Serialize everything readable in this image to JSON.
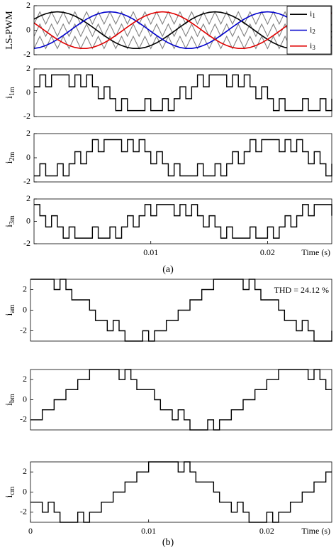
{
  "figure_labels": [
    "(a)",
    "(b)"
  ],
  "chart_data": [
    {
      "type": "line",
      "ylabel": "LS-PWM",
      "legend": "upper right",
      "x": [
        0,
        0.0005,
        0.001,
        0.0015,
        0.002,
        0.0025,
        0.003,
        0.0035,
        0.004,
        0.0045,
        0.005,
        0.0055,
        0.006,
        0.0065,
        0.007,
        0.0075,
        0.008,
        0.0085,
        0.009,
        0.0095,
        0.01,
        0.0105,
        0.011,
        0.0115,
        0.012,
        0.0125,
        0.013,
        0.0135,
        0.014,
        0.0145,
        0.015,
        0.0155,
        0.016,
        0.0165,
        0.017,
        0.0175,
        0.018,
        0.0185,
        0.019,
        0.0195,
        0.02,
        0.0205,
        0.021,
        0.0215,
        0.022,
        0.0225,
        0.023,
        0.0235,
        0.024,
        0.0245,
        0.025,
        0.0255
      ],
      "xlim": [
        0,
        0.0255
      ],
      "ylim": [
        -2,
        2
      ],
      "yticks": [
        -2,
        0,
        2
      ],
      "series": [
        {
          "color": "#808080",
          "values": [
            0.5,
            1.5,
            0.5,
            1.5,
            0.5,
            1.5,
            0.5,
            1.5,
            0.5,
            1.5,
            0.5,
            1.5,
            0.5,
            1.5,
            0.5,
            1.5,
            0.5,
            1.5,
            0.5,
            1.5,
            0.5,
            1.5,
            0.5,
            1.5,
            0.5,
            1.5,
            0.5,
            1.5,
            0.5,
            1.5,
            0.5,
            1.5,
            0.5,
            1.5,
            0.5,
            1.5,
            0.5,
            1.5,
            0.5,
            1.5,
            0.5,
            1.5,
            0.5,
            1.5,
            0.5,
            1.5,
            0.5,
            1.5,
            0.5,
            1.5,
            0.5,
            1.5
          ]
        },
        {
          "color": "#808080",
          "values": [
            -0.5,
            0.5,
            -0.5,
            0.5,
            -0.5,
            0.5,
            -0.5,
            0.5,
            -0.5,
            0.5,
            -0.5,
            0.5,
            -0.5,
            0.5,
            -0.5,
            0.5,
            -0.5,
            0.5,
            -0.5,
            0.5,
            -0.5,
            0.5,
            -0.5,
            0.5,
            -0.5,
            0.5,
            -0.5,
            0.5,
            -0.5,
            0.5,
            -0.5,
            0.5,
            -0.5,
            0.5,
            -0.5,
            0.5,
            -0.5,
            0.5,
            -0.5,
            0.5,
            -0.5,
            0.5,
            -0.5,
            0.5,
            -0.5,
            0.5,
            -0.5,
            0.5,
            -0.5,
            0.5,
            -0.5,
            0.5
          ]
        },
        {
          "color": "#808080",
          "values": [
            -1.5,
            -0.5,
            -1.5,
            -0.5,
            -1.5,
            -0.5,
            -1.5,
            -0.5,
            -1.5,
            -0.5,
            -1.5,
            -0.5,
            -1.5,
            -0.5,
            -1.5,
            -0.5,
            -1.5,
            -0.5,
            -1.5,
            -0.5,
            -1.5,
            -0.5,
            -1.5,
            -0.5,
            -1.5,
            -0.5,
            -1.5,
            -0.5,
            -1.5,
            -0.5,
            -1.5,
            -0.5,
            -1.5,
            -0.5,
            -1.5,
            -0.5,
            -1.5,
            -0.5,
            -1.5,
            -0.5,
            -1.5,
            -0.5,
            -1.5,
            -0.5,
            -1.5,
            -0.5,
            -1.5,
            -0.5,
            -1.5,
            -0.5,
            -1.5,
            -0.5
          ]
        },
        {
          "name": "i",
          "name_sub": "1",
          "color": "#000000",
          "values": [
            0.9,
            1.15,
            1.34,
            1.46,
            1.5,
            1.46,
            1.34,
            1.15,
            0.9,
            0.59,
            0.26,
            -0.09,
            -0.43,
            -0.75,
            -1.03,
            -1.25,
            -1.41,
            -1.49,
            -1.49,
            -1.41,
            -1.25,
            -1.03,
            -0.75,
            -0.43,
            -0.09,
            0.26,
            0.59,
            0.9,
            1.15,
            1.34,
            1.46,
            1.5,
            1.46,
            1.34,
            1.15,
            0.9,
            0.59,
            0.26,
            -0.09,
            -0.43,
            -0.75,
            -1.03,
            -1.25,
            -1.41,
            -1.49,
            -1.49,
            -1.41,
            -1.25,
            -1.03,
            -0.75,
            -0.43,
            -0.09
          ]
        },
        {
          "name": "i",
          "name_sub": "2",
          "color": "#0000cc",
          "values": [
            -1.49,
            -1.41,
            -1.25,
            -1.03,
            -0.75,
            -0.43,
            -0.09,
            0.26,
            0.59,
            0.9,
            1.15,
            1.34,
            1.46,
            1.5,
            1.46,
            1.34,
            1.15,
            0.9,
            0.59,
            0.26,
            -0.09,
            -0.43,
            -0.75,
            -1.03,
            -1.25,
            -1.41,
            -1.49,
            -1.49,
            -1.41,
            -1.25,
            -1.03,
            -0.75,
            -0.43,
            -0.09,
            0.26,
            0.59,
            0.9,
            1.15,
            1.34,
            1.46,
            1.5,
            1.46,
            1.34,
            1.15,
            0.9,
            0.59,
            0.26,
            -0.09,
            -0.43,
            -0.75,
            -1.03,
            -1.25
          ]
        },
        {
          "name": "i",
          "name_sub": "3",
          "color": "#e00000",
          "values": [
            0.59,
            0.26,
            -0.09,
            -0.43,
            -0.75,
            -1.03,
            -1.25,
            -1.41,
            -1.49,
            -1.49,
            -1.41,
            -1.25,
            -1.03,
            -0.75,
            -0.43,
            -0.09,
            0.26,
            0.59,
            0.9,
            1.15,
            1.34,
            1.46,
            1.5,
            1.46,
            1.34,
            1.15,
            0.9,
            0.59,
            0.26,
            -0.09,
            -0.43,
            -0.75,
            -1.03,
            -1.25,
            -1.41,
            -1.49,
            -1.49,
            -1.41,
            -1.25,
            -1.03,
            -0.75,
            -0.43,
            -0.09,
            0.26,
            0.59,
            0.9,
            1.15,
            1.34,
            1.46,
            1.5,
            1.46,
            1.34
          ]
        }
      ]
    },
    {
      "type": "line",
      "step": true,
      "ylabel": "i",
      "ylabel_sub": "1m",
      "x": [
        0,
        0.0005,
        0.001,
        0.0015,
        0.002,
        0.0025,
        0.003,
        0.0035,
        0.004,
        0.0045,
        0.005,
        0.0055,
        0.006,
        0.0065,
        0.007,
        0.0075,
        0.008,
        0.0085,
        0.009,
        0.0095,
        0.01,
        0.0105,
        0.011,
        0.0115,
        0.012,
        0.0125,
        0.013,
        0.0135,
        0.014,
        0.0145,
        0.015,
        0.0155,
        0.016,
        0.0165,
        0.017,
        0.0175,
        0.018,
        0.0185,
        0.019,
        0.0195,
        0.02,
        0.0205,
        0.021,
        0.0215,
        0.022,
        0.0225,
        0.023,
        0.0235,
        0.024,
        0.0245,
        0.025,
        0.0255
      ],
      "xlim": [
        0,
        0.0255
      ],
      "ylim": [
        -2,
        2
      ],
      "yticks": [
        -2,
        0,
        2
      ],
      "series": [
        {
          "color": "#000000",
          "values": [
            0.5,
            1.5,
            0.5,
            1.5,
            1.5,
            1.5,
            0.5,
            1.5,
            0.5,
            1.5,
            0.5,
            -0.5,
            0.5,
            -0.5,
            -1.5,
            -0.5,
            -1.5,
            -1.5,
            -1.5,
            -0.5,
            -1.5,
            -1.5,
            -0.5,
            -1.5,
            -0.5,
            0.5,
            -0.5,
            0.5,
            1.5,
            0.5,
            1.5,
            1.5,
            1.5,
            0.5,
            1.5,
            0.5,
            1.5,
            0.5,
            -0.5,
            0.5,
            -0.5,
            -1.5,
            -0.5,
            -1.5,
            -1.5,
            -1.5,
            -0.5,
            -1.5,
            -1.5,
            -0.5,
            -1.5,
            -0.5
          ]
        }
      ]
    },
    {
      "type": "line",
      "step": true,
      "ylabel": "i",
      "ylabel_sub": "2m",
      "x": [
        0,
        0.0005,
        0.001,
        0.0015,
        0.002,
        0.0025,
        0.003,
        0.0035,
        0.004,
        0.0045,
        0.005,
        0.0055,
        0.006,
        0.0065,
        0.007,
        0.0075,
        0.008,
        0.0085,
        0.009,
        0.0095,
        0.01,
        0.0105,
        0.011,
        0.0115,
        0.012,
        0.0125,
        0.013,
        0.0135,
        0.014,
        0.0145,
        0.015,
        0.0155,
        0.016,
        0.0165,
        0.017,
        0.0175,
        0.018,
        0.0185,
        0.019,
        0.0195,
        0.02,
        0.0205,
        0.021,
        0.0215,
        0.022,
        0.0225,
        0.023,
        0.0235,
        0.024,
        0.0245,
        0.025,
        0.0255
      ],
      "xlim": [
        0,
        0.0255
      ],
      "ylim": [
        -2,
        2
      ],
      "yticks": [
        -2,
        0,
        2
      ],
      "series": [
        {
          "color": "#000000",
          "values": [
            -1.5,
            -0.5,
            -1.5,
            -1.5,
            -0.5,
            -1.5,
            -0.5,
            0.5,
            -0.5,
            0.5,
            1.5,
            0.5,
            1.5,
            1.5,
            1.5,
            0.5,
            1.5,
            0.5,
            1.5,
            0.5,
            -0.5,
            0.5,
            -0.5,
            -1.5,
            -0.5,
            -1.5,
            -1.5,
            -1.5,
            -0.5,
            -1.5,
            -1.5,
            -0.5,
            -1.5,
            -0.5,
            0.5,
            -0.5,
            0.5,
            1.5,
            0.5,
            1.5,
            1.5,
            1.5,
            0.5,
            1.5,
            0.5,
            1.5,
            0.5,
            -0.5,
            0.5,
            -0.5,
            -1.5,
            -0.5
          ]
        }
      ]
    },
    {
      "type": "line",
      "step": true,
      "ylabel": "i",
      "ylabel_sub": "3m",
      "xlabel": "Time (s)",
      "x": [
        0,
        0.0005,
        0.001,
        0.0015,
        0.002,
        0.0025,
        0.003,
        0.0035,
        0.004,
        0.0045,
        0.005,
        0.0055,
        0.006,
        0.0065,
        0.007,
        0.0075,
        0.008,
        0.0085,
        0.009,
        0.0095,
        0.01,
        0.0105,
        0.011,
        0.0115,
        0.012,
        0.0125,
        0.013,
        0.0135,
        0.014,
        0.0145,
        0.015,
        0.0155,
        0.016,
        0.0165,
        0.017,
        0.0175,
        0.018,
        0.0185,
        0.019,
        0.0195,
        0.02,
        0.0205,
        0.021,
        0.0215,
        0.022,
        0.0225,
        0.023,
        0.0235,
        0.024,
        0.0245,
        0.025,
        0.0255
      ],
      "xlim": [
        0,
        0.0255
      ],
      "xticks": [
        0.01,
        0.02
      ],
      "ylim": [
        -2,
        2
      ],
      "yticks": [
        -2,
        0,
        2
      ],
      "series": [
        {
          "color": "#000000",
          "values": [
            1.5,
            0.5,
            -0.5,
            0.5,
            -0.5,
            -1.5,
            -0.5,
            -1.5,
            -1.5,
            -1.5,
            -0.5,
            -1.5,
            -1.5,
            -0.5,
            -1.5,
            -0.5,
            0.5,
            -0.5,
            0.5,
            1.5,
            0.5,
            1.5,
            1.5,
            1.5,
            0.5,
            1.5,
            0.5,
            1.5,
            0.5,
            -0.5,
            0.5,
            -0.5,
            -1.5,
            -0.5,
            -1.5,
            -1.5,
            -1.5,
            -0.5,
            -1.5,
            -1.5,
            -0.5,
            -1.5,
            -0.5,
            0.5,
            -0.5,
            0.5,
            1.5,
            0.5,
            1.5,
            1.5,
            1.5,
            0.5
          ]
        }
      ]
    },
    {
      "type": "line",
      "step": true,
      "ylabel": "i",
      "ylabel_sub": "am",
      "annotation": "THD = 24.12 %",
      "x": [
        0,
        0.0005,
        0.001,
        0.0015,
        0.002,
        0.0025,
        0.003,
        0.0035,
        0.004,
        0.0045,
        0.005,
        0.0055,
        0.006,
        0.0065,
        0.007,
        0.0075,
        0.008,
        0.0085,
        0.009,
        0.0095,
        0.01,
        0.0105,
        0.011,
        0.0115,
        0.012,
        0.0125,
        0.013,
        0.0135,
        0.014,
        0.0145,
        0.015,
        0.0155,
        0.016,
        0.0165,
        0.017,
        0.0175,
        0.018,
        0.0185,
        0.019,
        0.0195,
        0.02,
        0.0205,
        0.021,
        0.0215,
        0.022,
        0.0225,
        0.023,
        0.0235,
        0.024,
        0.0245,
        0.025,
        0.0255
      ],
      "xlim": [
        0,
        0.0255
      ],
      "ylim": [
        -3,
        3
      ],
      "yticks": [
        -2,
        0,
        2
      ],
      "series": [
        {
          "color": "#000000",
          "values": [
            3,
            3,
            3,
            3,
            2,
            3,
            2,
            1,
            1,
            1,
            0,
            -1,
            -1,
            -2,
            -1,
            -2,
            -3,
            -3,
            -3,
            -2,
            -3,
            -2,
            -2,
            -1,
            -1,
            0,
            0,
            1,
            1,
            2,
            2,
            3,
            3,
            3,
            3,
            3,
            2,
            3,
            2,
            1,
            1,
            1,
            0,
            -1,
            -1,
            -2,
            -1,
            -2,
            -3,
            -3,
            -3,
            -2
          ]
        }
      ]
    },
    {
      "type": "line",
      "step": true,
      "ylabel": "i",
      "ylabel_sub": "bm",
      "x": [
        0,
        0.0005,
        0.001,
        0.0015,
        0.002,
        0.0025,
        0.003,
        0.0035,
        0.004,
        0.0045,
        0.005,
        0.0055,
        0.006,
        0.0065,
        0.007,
        0.0075,
        0.008,
        0.0085,
        0.009,
        0.0095,
        0.01,
        0.0105,
        0.011,
        0.0115,
        0.012,
        0.0125,
        0.013,
        0.0135,
        0.014,
        0.0145,
        0.015,
        0.0155,
        0.016,
        0.0165,
        0.017,
        0.0175,
        0.018,
        0.0185,
        0.019,
        0.0195,
        0.02,
        0.0205,
        0.021,
        0.0215,
        0.022,
        0.0225,
        0.023,
        0.0235,
        0.024,
        0.0245,
        0.025,
        0.0255
      ],
      "xlim": [
        0,
        0.0255
      ],
      "ylim": [
        -3,
        3
      ],
      "yticks": [
        -2,
        0,
        2
      ],
      "series": [
        {
          "color": "#000000",
          "values": [
            -2,
            -2,
            -1,
            -1,
            0,
            0,
            1,
            1,
            2,
            2,
            3,
            3,
            3,
            3,
            3,
            2,
            3,
            2,
            1,
            1,
            1,
            0,
            -1,
            -1,
            -2,
            -1,
            -2,
            -3,
            -3,
            -3,
            -2,
            -3,
            -2,
            -2,
            -1,
            -1,
            0,
            0,
            1,
            1,
            2,
            2,
            3,
            3,
            3,
            3,
            3,
            2,
            3,
            2,
            1,
            1
          ]
        }
      ]
    },
    {
      "type": "line",
      "step": true,
      "ylabel": "i",
      "ylabel_sub": "cm",
      "xlabel": "Time (s)",
      "x": [
        0,
        0.0005,
        0.001,
        0.0015,
        0.002,
        0.0025,
        0.003,
        0.0035,
        0.004,
        0.0045,
        0.005,
        0.0055,
        0.006,
        0.0065,
        0.007,
        0.0075,
        0.008,
        0.0085,
        0.009,
        0.0095,
        0.01,
        0.0105,
        0.011,
        0.0115,
        0.012,
        0.0125,
        0.013,
        0.0135,
        0.014,
        0.0145,
        0.015,
        0.0155,
        0.016,
        0.0165,
        0.017,
        0.0175,
        0.018,
        0.0185,
        0.019,
        0.0195,
        0.02,
        0.0205,
        0.021,
        0.0215,
        0.022,
        0.0225,
        0.023,
        0.0235,
        0.024,
        0.0245,
        0.025,
        0.0255
      ],
      "xlim": [
        0,
        0.0255
      ],
      "xticks": [
        0,
        0.01,
        0.02
      ],
      "ylim": [
        -3,
        3
      ],
      "yticks": [
        -2,
        0,
        2
      ],
      "series": [
        {
          "color": "#000000",
          "values": [
            -1,
            -1,
            -2,
            -1,
            -2,
            -3,
            -3,
            -3,
            -2,
            -3,
            -2,
            -2,
            -1,
            -1,
            0,
            0,
            1,
            1,
            2,
            2,
            3,
            3,
            3,
            3,
            3,
            2,
            3,
            2,
            1,
            1,
            1,
            0,
            -1,
            -1,
            -2,
            -1,
            -2,
            -3,
            -3,
            -3,
            -2,
            -3,
            -2,
            -2,
            -1,
            -1,
            0,
            0,
            1,
            1,
            2,
            2
          ]
        }
      ]
    }
  ]
}
